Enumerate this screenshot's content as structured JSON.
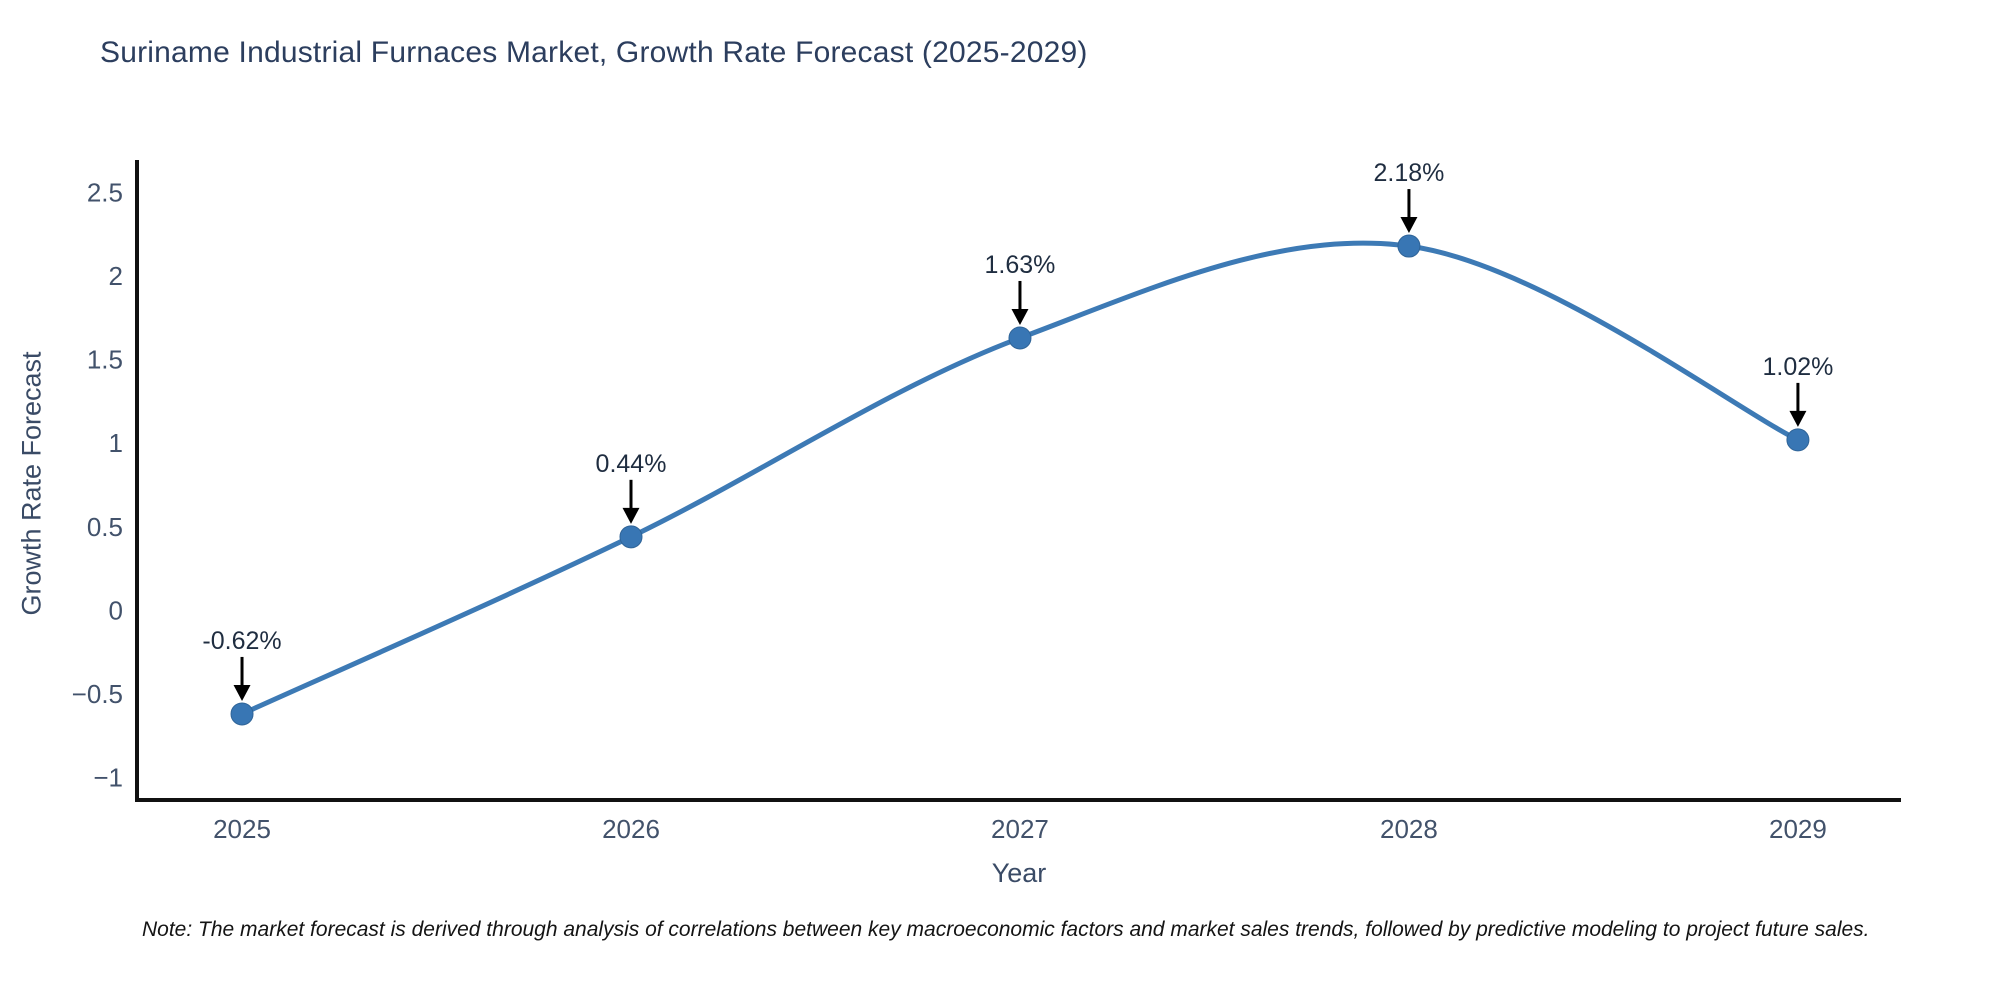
{
  "figure": {
    "title": "Suriname Industrial Furnaces Market, Growth Rate Forecast (2025-2029)",
    "note": "Note: The market forecast is derived through analysis of correlations between key macroeconomic factors and market sales trends, followed by predictive modeling to project future sales."
  },
  "chart_data": {
    "type": "line",
    "title": "Suriname Industrial Furnaces Market, Growth Rate Forecast (2025-2029)",
    "xlabel": "Year",
    "ylabel": "Growth Rate Forecast",
    "x": [
      2025,
      2026,
      2027,
      2028,
      2029
    ],
    "series": [
      {
        "name": "Growth Rate Forecast",
        "values": [
          -0.62,
          0.44,
          1.63,
          2.18,
          1.02
        ]
      }
    ],
    "point_labels": [
      "-0.62%",
      "0.44%",
      "1.63%",
      "2.18%",
      "1.02%"
    ],
    "xticks": [
      "2025",
      "2026",
      "2027",
      "2028",
      "2029"
    ],
    "yticks": [
      2.5,
      2,
      1.5,
      1,
      0.5,
      0,
      -0.5,
      -1
    ],
    "xlim": [
      2024.73,
      2029.265
    ],
    "ylim": [
      -1.135,
      2.695
    ],
    "grid": false,
    "legend": false,
    "line_color": "#3d7ab5",
    "marker_color": "#3876b4",
    "axis_color": "#111111",
    "tick_color": "#42526b",
    "annotation_color": "#1f2d40",
    "curve": "smooth"
  }
}
